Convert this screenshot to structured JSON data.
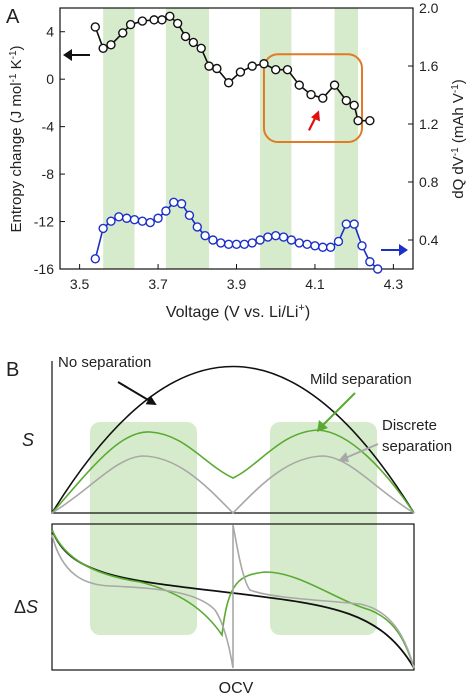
{
  "colors": {
    "entropy": "#111111",
    "dqdv": "#1b2fc9",
    "shade": "#d6ebcc",
    "box": "#e07b24",
    "pointer": "#e01010",
    "no_separation": "#111111",
    "mild_separation": "#5aaa32",
    "discrete_separation": "#a8a8a8"
  },
  "panelA": {
    "label": "A",
    "left_arrow": "left-arrow-icon",
    "right_arrow": "right-arrow-icon",
    "highlight_arrow": "up-right-arrow-icon"
  },
  "panelB": {
    "label": "B",
    "top_ylabel": "S",
    "bottom_ylabel_delta": "Δ",
    "bottom_ylabel_s": "S",
    "xlabel": "OCV",
    "ann_no_sep": "No separation",
    "ann_mild": "Mild separation",
    "ann_discrete_1": "Discrete",
    "ann_discrete_2": "separation"
  },
  "chart_data": [
    {
      "type": "line",
      "panel": "A",
      "xlabel_prefix": "Voltage (V vs. Li/Li",
      "xlabel_sup": "+",
      "xlabel_suffix": ")",
      "ylabel_left_main": "Entropy change (J mol",
      "ylabel_left_sup1": "-1",
      "ylabel_left_mid": " K",
      "ylabel_left_sup2": "-1",
      "ylabel_left_end": ")",
      "ylabel_right_main": "dQ dV",
      "ylabel_right_sup": "-1",
      "ylabel_right_end": " (mAh V",
      "ylabel_right_sup2": "-1",
      "ylabel_right_close": ")",
      "xlim": [
        3.45,
        4.35
      ],
      "ylim_left": [
        -16,
        6
      ],
      "ylim_right": [
        0.2,
        2.0
      ],
      "xticks": [
        "3.5",
        "3.7",
        "3.9",
        "4.1",
        "4.3"
      ],
      "xtick_values": [
        3.5,
        3.7,
        3.9,
        4.1,
        4.3
      ],
      "yticks_left": [
        "4",
        "0",
        "-4",
        "-8",
        "-12",
        "-16"
      ],
      "ytick_left_values": [
        4,
        0,
        -4,
        -8,
        -12,
        -16
      ],
      "yticks_right": [
        "2.0",
        "1.6",
        "1.2",
        "0.8",
        "0.4"
      ],
      "ytick_right_values": [
        2.0,
        1.6,
        1.2,
        0.8,
        0.4
      ],
      "shaded_voltage_ranges": [
        [
          3.56,
          3.64
        ],
        [
          3.72,
          3.83
        ],
        [
          3.96,
          4.04
        ],
        [
          4.15,
          4.21
        ]
      ],
      "highlight_box_voltage": [
        3.97,
        4.22
      ],
      "highlight_box_entropy": [
        -5.3,
        2.1
      ],
      "highlight_arrow_at": {
        "x": 4.095,
        "y": -2.8
      },
      "series": [
        {
          "axis": "left",
          "x": [
            3.54,
            3.56,
            3.58,
            3.61,
            3.63,
            3.66,
            3.69,
            3.71,
            3.73,
            3.75,
            3.77,
            3.79,
            3.81,
            3.83,
            3.85,
            3.88,
            3.91,
            3.94,
            3.97,
            4.0,
            4.03,
            4.06,
            4.09,
            4.12,
            4.15,
            4.18,
            4.2,
            4.21,
            4.24
          ],
          "y": [
            4.4,
            2.6,
            2.9,
            3.9,
            4.6,
            4.9,
            5.0,
            5.0,
            5.3,
            4.7,
            3.6,
            3.1,
            2.6,
            1.1,
            0.9,
            -0.3,
            0.6,
            1.1,
            1.3,
            0.8,
            0.8,
            -0.5,
            -1.3,
            -1.6,
            -0.5,
            -1.8,
            -2.2,
            -3.5,
            -3.5
          ]
        },
        {
          "axis": "right",
          "x": [
            3.54,
            3.56,
            3.58,
            3.6,
            3.62,
            3.64,
            3.66,
            3.68,
            3.7,
            3.72,
            3.74,
            3.76,
            3.78,
            3.8,
            3.82,
            3.84,
            3.86,
            3.88,
            3.9,
            3.92,
            3.94,
            3.96,
            3.98,
            4.0,
            4.02,
            4.04,
            4.06,
            4.08,
            4.1,
            4.12,
            4.14,
            4.16,
            4.18,
            4.2,
            4.22,
            4.24,
            4.26
          ],
          "y": [
            0.27,
            0.48,
            0.53,
            0.56,
            0.55,
            0.54,
            0.53,
            0.52,
            0.55,
            0.6,
            0.66,
            0.65,
            0.57,
            0.49,
            0.43,
            0.4,
            0.38,
            0.37,
            0.37,
            0.37,
            0.38,
            0.4,
            0.42,
            0.43,
            0.42,
            0.4,
            0.38,
            0.37,
            0.36,
            0.35,
            0.35,
            0.39,
            0.51,
            0.51,
            0.36,
            0.25,
            0.2
          ]
        }
      ]
    },
    {
      "type": "line",
      "panel": "B-top",
      "xlim": [
        0,
        1
      ],
      "ylim": [
        0,
        1
      ],
      "series": [
        {
          "name": "No separation"
        },
        {
          "name": "Mild separation"
        },
        {
          "name": "Discrete separation"
        }
      ]
    },
    {
      "type": "line",
      "panel": "B-bottom",
      "xlim": [
        0,
        1
      ],
      "ylim": [
        -1,
        1
      ]
    }
  ]
}
